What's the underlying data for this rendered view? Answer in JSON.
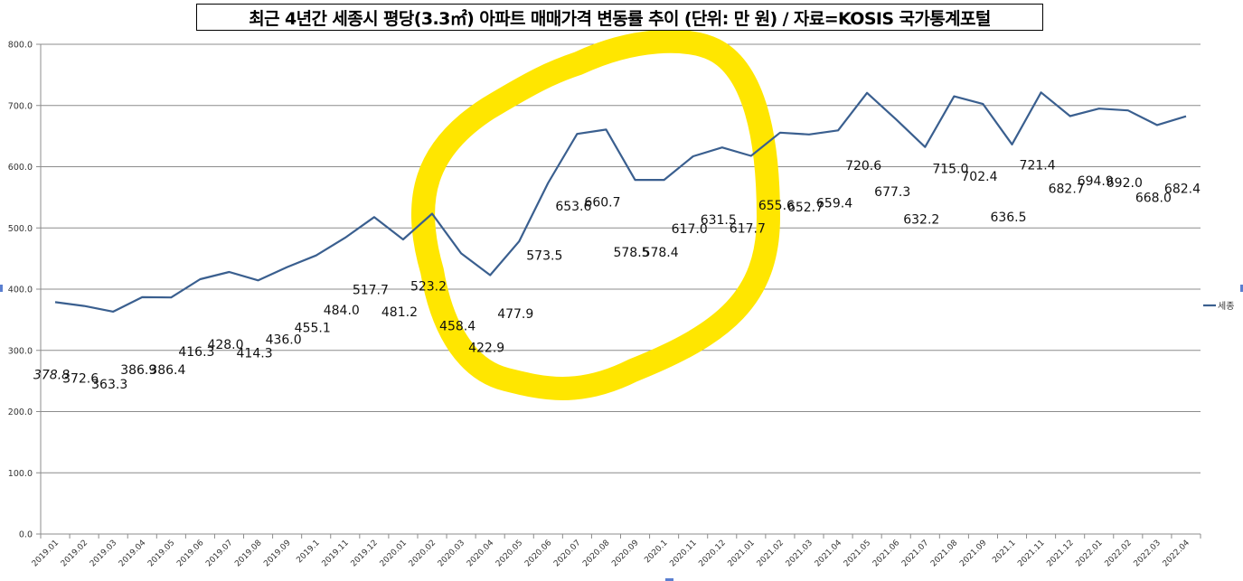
{
  "title": "최근 4년간 세종시 평당(3.3㎡) 아파트 매매가격 변동률 추이 (단위: 만 원) / 자료=KOSIS 국가통계포털",
  "legend": {
    "label": "세종",
    "color": "#3a5f8f"
  },
  "annotation": {
    "type": "freehand-circle",
    "color": "#ffe600",
    "note": "highlight around 2020.01–2021.01"
  },
  "chart_data": {
    "type": "line",
    "title": "최근 4년간 세종시 평당(3.3㎡) 아파트 매매가격 변동률 추이 (단위: 만 원) / 자료=KOSIS 국가통계포털",
    "xlabel": "",
    "ylabel": "",
    "ylim": [
      0,
      800
    ],
    "yticks": [
      "0.0",
      "100.0",
      "200.0",
      "300.0",
      "400.0",
      "500.0",
      "600.0",
      "700.0",
      "800.0"
    ],
    "grid": true,
    "legend_position": "right",
    "categories": [
      "2019.01",
      "2019.02",
      "2019.03",
      "2019.04",
      "2019.05",
      "2019.06",
      "2019.07",
      "2019.08",
      "2019.09",
      "2019.1",
      "2019.11",
      "2019.12",
      "2020.01",
      "2020.02",
      "2020.03",
      "2020.04",
      "2020.05",
      "2020.06",
      "2020.07",
      "2020.08",
      "2020.09",
      "2020.1",
      "2020.11",
      "2020.12",
      "2021.01",
      "2021.02",
      "2021.03",
      "2021.04",
      "2021.05",
      "2021.06",
      "2021.07",
      "2021.08",
      "2021.09",
      "2021.1",
      "2021.11",
      "2021.12",
      "2022.01",
      "2022.02",
      "2022.03",
      "2022.04"
    ],
    "series": [
      {
        "name": "세종",
        "values": [
          378.8,
          372.6,
          363.3,
          386.9,
          386.4,
          416.3,
          428.0,
          414.3,
          436.0,
          455.1,
          484.0,
          517.7,
          481.2,
          523.2,
          458.4,
          422.9,
          477.9,
          573.5,
          653.6,
          660.7,
          578.5,
          578.4,
          617.0,
          631.5,
          617.7,
          655.6,
          652.7,
          659.4,
          720.6,
          677.3,
          632.2,
          715.0,
          702.4,
          636.5,
          721.4,
          682.7,
          694.9,
          692.0,
          668.0,
          682.4
        ],
        "labels": [
          "378.8",
          "372.6",
          "363.3",
          "386.9",
          "386.4",
          "416.3",
          "428.0",
          "414.3",
          "436.0",
          "455.1",
          "484.0",
          "517.7",
          "481.2",
          "523.2",
          "458.4",
          "422.9",
          "477.9",
          "573.5",
          "653.6",
          "660.7",
          "578.5",
          "578.4",
          "617.0",
          "631.5",
          "617.7",
          "655.6",
          "652.7",
          "659.4",
          "720.6",
          "677.3",
          "632.2",
          "715.0",
          "702.4",
          "636.5",
          "721.4",
          "682.7",
          "694.9",
          "692.0",
          "668.0",
          "682.4"
        ]
      }
    ]
  }
}
